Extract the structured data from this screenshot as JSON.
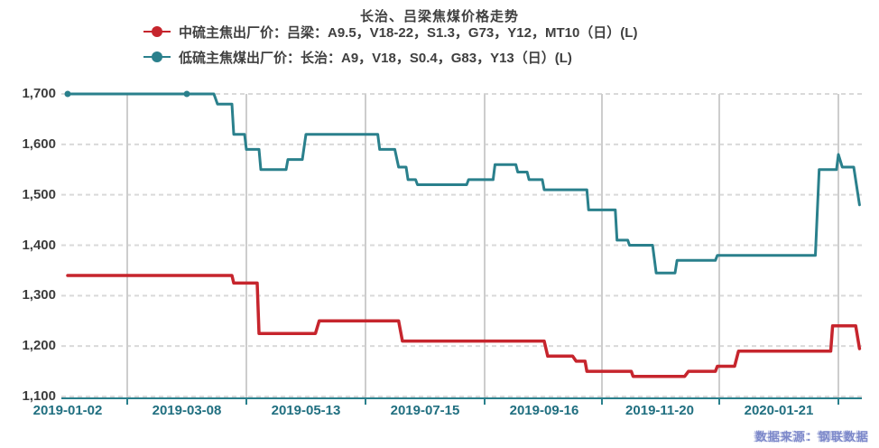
{
  "title": "长治、吕梁焦煤价格走势",
  "source_note": "数据来源：钢联数据",
  "colors": {
    "series_mid_sulfur": "#c6252d",
    "series_low_sulfur": "#2a808c",
    "axis_line": "#2a808c",
    "x_label": "#206f80",
    "y_label": "#3d3d3d",
    "title_text": "#3f3f3f",
    "grid_vertical": "#cdcdcd",
    "grid_horizontal": "#d9d9d9",
    "watermark": "#7c88ca",
    "background": "#ffffff"
  },
  "chart_data": {
    "type": "line",
    "title": "长治、吕梁焦煤价格走势",
    "xlabel": "",
    "ylabel": "",
    "grid": true,
    "legend_position": "top",
    "ylim": [
      1100,
      1700
    ],
    "yticks": [
      1700,
      1600,
      1500,
      1400,
      1300,
      1200,
      1100
    ],
    "ytick_labels": [
      "1,700",
      "1,600",
      "1,500",
      "1,400",
      "1,300",
      "1,200",
      "1,100"
    ],
    "xtick_labels": [
      "2019-01-02",
      "2019-03-08",
      "2019-05-13",
      "2019-07-15",
      "2019-09-16",
      "2019-11-20",
      "2020-01-21"
    ],
    "series": [
      {
        "name": "中硫主焦出厂价：吕梁：A9.5，V18-22，S1.3，G73，Y12，MT10（日）(L)",
        "color": "#c6252d",
        "points": [
          [
            "2019-01-02",
            1340
          ],
          [
            "2019-04-02",
            1340
          ],
          [
            "2019-04-03",
            1325
          ],
          [
            "2019-04-16",
            1325
          ],
          [
            "2019-04-17",
            1225
          ],
          [
            "2019-05-18",
            1225
          ],
          [
            "2019-05-20",
            1250
          ],
          [
            "2019-07-01",
            1250
          ],
          [
            "2019-07-03",
            1210
          ],
          [
            "2019-09-16",
            1210
          ],
          [
            "2019-09-18",
            1180
          ],
          [
            "2019-10-02",
            1180
          ],
          [
            "2019-10-04",
            1170
          ],
          [
            "2019-10-09",
            1170
          ],
          [
            "2019-10-10",
            1150
          ],
          [
            "2019-11-04",
            1150
          ],
          [
            "2019-11-05",
            1140
          ],
          [
            "2019-12-03",
            1140
          ],
          [
            "2019-12-05",
            1150
          ],
          [
            "2019-12-19",
            1150
          ],
          [
            "2019-12-20",
            1160
          ],
          [
            "2019-12-29",
            1160
          ],
          [
            "2019-12-31",
            1190
          ],
          [
            "2020-02-17",
            1190
          ],
          [
            "2020-02-18",
            1240
          ],
          [
            "2020-03-01",
            1240
          ],
          [
            "2020-03-03",
            1195
          ]
        ]
      },
      {
        "name": "低硫主焦煤出厂价：长治：A9，V18，S0.4，G83，Y13（日）(L)",
        "color": "#2a808c",
        "points": [
          [
            "2019-01-02",
            1700
          ],
          [
            "2019-03-23",
            1700
          ],
          [
            "2019-03-25",
            1680
          ],
          [
            "2019-04-02",
            1680
          ],
          [
            "2019-04-03",
            1620
          ],
          [
            "2019-04-09",
            1620
          ],
          [
            "2019-04-10",
            1590
          ],
          [
            "2019-04-17",
            1590
          ],
          [
            "2019-04-18",
            1550
          ],
          [
            "2019-05-02",
            1550
          ],
          [
            "2019-05-03",
            1570
          ],
          [
            "2019-05-11",
            1570
          ],
          [
            "2019-05-13",
            1620
          ],
          [
            "2019-06-20",
            1620
          ],
          [
            "2019-06-21",
            1590
          ],
          [
            "2019-06-29",
            1590
          ],
          [
            "2019-07-01",
            1555
          ],
          [
            "2019-07-05",
            1555
          ],
          [
            "2019-07-06",
            1530
          ],
          [
            "2019-07-10",
            1530
          ],
          [
            "2019-07-11",
            1520
          ],
          [
            "2019-08-06",
            1520
          ],
          [
            "2019-08-07",
            1530
          ],
          [
            "2019-08-20",
            1530
          ],
          [
            "2019-08-21",
            1560
          ],
          [
            "2019-09-01",
            1560
          ],
          [
            "2019-09-02",
            1545
          ],
          [
            "2019-09-07",
            1545
          ],
          [
            "2019-09-08",
            1530
          ],
          [
            "2019-09-15",
            1530
          ],
          [
            "2019-09-16",
            1510
          ],
          [
            "2019-10-10",
            1510
          ],
          [
            "2019-10-11",
            1470
          ],
          [
            "2019-10-26",
            1470
          ],
          [
            "2019-10-27",
            1410
          ],
          [
            "2019-11-02",
            1410
          ],
          [
            "2019-11-03",
            1400
          ],
          [
            "2019-11-16",
            1400
          ],
          [
            "2019-11-18",
            1345
          ],
          [
            "2019-11-28",
            1345
          ],
          [
            "2019-11-29",
            1370
          ],
          [
            "2019-12-19",
            1370
          ],
          [
            "2019-12-20",
            1380
          ],
          [
            "2020-02-09",
            1380
          ],
          [
            "2020-02-11",
            1550
          ],
          [
            "2020-02-20",
            1550
          ],
          [
            "2020-02-21",
            1580
          ],
          [
            "2020-02-23",
            1555
          ],
          [
            "2020-02-29",
            1555
          ],
          [
            "2020-03-03",
            1480
          ]
        ],
        "markers": [
          [
            "2019-01-02",
            1700
          ],
          [
            "2019-03-08",
            1700
          ]
        ]
      }
    ]
  }
}
